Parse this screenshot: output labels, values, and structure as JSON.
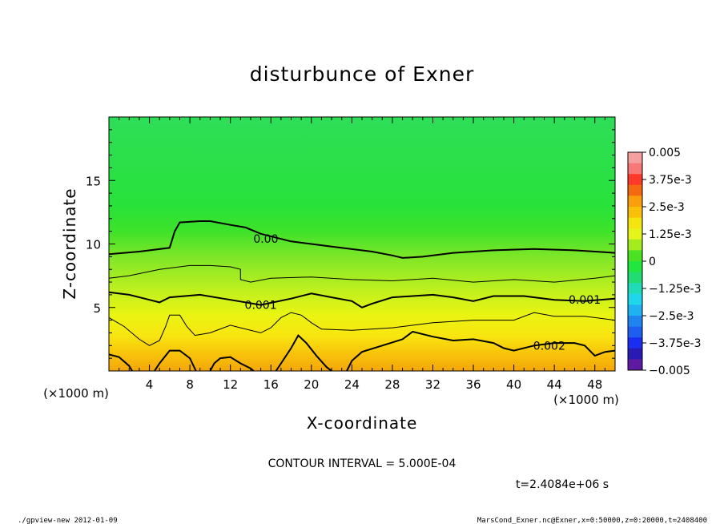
{
  "chart_data": {
    "type": "heatmap",
    "title": "disturbunce of Exner",
    "xlabel": "X-coordinate",
    "ylabel": "Z-coordinate",
    "x_unit": "(×1000 m)",
    "y_unit": "(×1000 m)",
    "xlim": [
      0,
      50
    ],
    "ylim": [
      0,
      20
    ],
    "x_ticks": [
      4,
      8,
      12,
      16,
      20,
      24,
      28,
      32,
      36,
      40,
      44,
      48
    ],
    "y_ticks": [
      5,
      10,
      15
    ],
    "colorbar": {
      "ticks": [
        "0.005",
        "3.75e-3",
        "2.5e-3",
        "1.25e-3",
        "0",
        "−1.25e-3",
        "−2.5e-3",
        "−3.75e-3",
        "−0.005"
      ],
      "range": [
        -0.005,
        0.005
      ]
    },
    "contour_labels": [
      {
        "text": "0.00",
        "x": 15.5,
        "z": 10.4
      },
      {
        "text": "0.001",
        "x": 15.0,
        "z": 5.2
      },
      {
        "text": "0.001",
        "x": 47.0,
        "z": 5.6
      },
      {
        "text": "0.002",
        "x": 43.5,
        "z": 2.0
      }
    ],
    "contour_lines": [
      {
        "level": 0.0,
        "weight": "bold",
        "points": [
          [
            0,
            9.2
          ],
          [
            3,
            9.4
          ],
          [
            6,
            9.7
          ],
          [
            6.5,
            11.0
          ],
          [
            7,
            11.7
          ],
          [
            9,
            11.8
          ],
          [
            10,
            11.8
          ],
          [
            12,
            11.5
          ],
          [
            13.5,
            11.3
          ],
          [
            15,
            10.8
          ],
          [
            18,
            10.2
          ],
          [
            22,
            9.8
          ],
          [
            26,
            9.4
          ],
          [
            28,
            9.1
          ],
          [
            29,
            8.9
          ],
          [
            31,
            9.0
          ],
          [
            34,
            9.3
          ],
          [
            38,
            9.5
          ],
          [
            42,
            9.6
          ],
          [
            46,
            9.5
          ],
          [
            50,
            9.3
          ]
        ]
      },
      {
        "level": 0.0005,
        "weight": "thin",
        "points": [
          [
            0,
            7.3
          ],
          [
            2,
            7.5
          ],
          [
            5,
            8.0
          ],
          [
            8,
            8.3
          ],
          [
            10,
            8.3
          ],
          [
            12,
            8.2
          ],
          [
            13,
            8.0
          ],
          [
            13,
            7.2
          ],
          [
            14,
            7.0
          ],
          [
            16,
            7.3
          ],
          [
            20,
            7.4
          ],
          [
            24,
            7.2
          ],
          [
            28,
            7.1
          ],
          [
            32,
            7.3
          ],
          [
            36,
            7.0
          ],
          [
            40,
            7.2
          ],
          [
            44,
            7.0
          ],
          [
            48,
            7.3
          ],
          [
            50,
            7.5
          ]
        ]
      },
      {
        "level": 0.001,
        "weight": "bold",
        "points": [
          [
            0,
            6.2
          ],
          [
            2,
            6.0
          ],
          [
            4,
            5.6
          ],
          [
            5,
            5.4
          ],
          [
            6,
            5.8
          ],
          [
            9,
            6.0
          ],
          [
            12,
            5.6
          ],
          [
            15,
            5.2
          ],
          [
            18,
            5.7
          ],
          [
            20,
            6.1
          ],
          [
            22,
            5.8
          ],
          [
            24,
            5.5
          ],
          [
            25,
            5.0
          ],
          [
            26,
            5.3
          ],
          [
            28,
            5.8
          ],
          [
            30,
            5.9
          ],
          [
            32,
            6.0
          ],
          [
            34,
            5.8
          ],
          [
            36,
            5.5
          ],
          [
            38,
            5.9
          ],
          [
            41,
            5.9
          ],
          [
            44,
            5.6
          ],
          [
            47,
            5.5
          ],
          [
            50,
            5.7
          ]
        ]
      },
      {
        "level": 0.0015,
        "weight": "thin",
        "points": [
          [
            0,
            4.2
          ],
          [
            1.5,
            3.5
          ],
          [
            3,
            2.5
          ],
          [
            4,
            2.0
          ],
          [
            5,
            2.4
          ],
          [
            5.6,
            3.5
          ],
          [
            6,
            4.4
          ],
          [
            7,
            4.4
          ],
          [
            7.7,
            3.5
          ],
          [
            8.5,
            2.8
          ],
          [
            10,
            3.0
          ],
          [
            12,
            3.6
          ],
          [
            13,
            3.4
          ],
          [
            15,
            3.0
          ],
          [
            16,
            3.4
          ],
          [
            17,
            4.2
          ],
          [
            18,
            4.6
          ],
          [
            19,
            4.4
          ],
          [
            20,
            3.8
          ],
          [
            21,
            3.3
          ],
          [
            24,
            3.2
          ],
          [
            28,
            3.4
          ],
          [
            32,
            3.8
          ],
          [
            36,
            4.0
          ],
          [
            40,
            4.0
          ],
          [
            42,
            4.6
          ],
          [
            44,
            4.3
          ],
          [
            47,
            4.3
          ],
          [
            50,
            4.0
          ]
        ]
      },
      {
        "level": 0.002,
        "weight": "bold",
        "points": [
          [
            0,
            1.3
          ],
          [
            1,
            1.1
          ],
          [
            2,
            0.4
          ],
          [
            2.3,
            0.0
          ]
        ]
      },
      {
        "level": 0.002,
        "weight": "bold",
        "points": [
          [
            4.5,
            0.0
          ],
          [
            5,
            0.6
          ],
          [
            6,
            1.6
          ],
          [
            7,
            1.6
          ],
          [
            8,
            1.0
          ],
          [
            8.6,
            0.0
          ]
        ]
      },
      {
        "level": 0.002,
        "weight": "bold",
        "points": [
          [
            10,
            0.0
          ],
          [
            10.4,
            0.6
          ],
          [
            11,
            1.0
          ],
          [
            12,
            1.1
          ],
          [
            13,
            0.6
          ],
          [
            14,
            0.2
          ],
          [
            14.3,
            0.0
          ]
        ]
      },
      {
        "level": 0.002,
        "weight": "bold",
        "points": [
          [
            16.5,
            0.0
          ],
          [
            17,
            0.6
          ],
          [
            18,
            1.8
          ],
          [
            18.7,
            2.8
          ],
          [
            19.5,
            2.2
          ],
          [
            20.5,
            1.2
          ],
          [
            21.5,
            0.3
          ],
          [
            22,
            0.0
          ]
        ]
      },
      {
        "level": 0.002,
        "weight": "bold",
        "points": [
          [
            23.5,
            0.0
          ],
          [
            24,
            0.8
          ],
          [
            25,
            1.5
          ],
          [
            27,
            2.0
          ],
          [
            29,
            2.5
          ],
          [
            30,
            3.1
          ],
          [
            32,
            2.7
          ],
          [
            34,
            2.4
          ],
          [
            36,
            2.5
          ],
          [
            38,
            2.2
          ],
          [
            39,
            1.8
          ],
          [
            40,
            1.6
          ],
          [
            42,
            2.0
          ],
          [
            44,
            2.2
          ],
          [
            46,
            2.2
          ],
          [
            47,
            2.0
          ],
          [
            48,
            1.2
          ],
          [
            49,
            1.5
          ],
          [
            50,
            1.6
          ]
        ]
      }
    ],
    "interval_label": "CONTOUR INTERVAL = 5.000E-04",
    "time_label": "t=2.4084e+06 s"
  },
  "footer": {
    "left": "./gpview-new  2012-01-09",
    "right": "MarsCond_Exner.nc@Exner,x=0:50000,z=0:20000,t=2408400"
  },
  "colors": {
    "field_base": "#22e622",
    "field_top": "#20dc50",
    "contour": "#000000"
  }
}
